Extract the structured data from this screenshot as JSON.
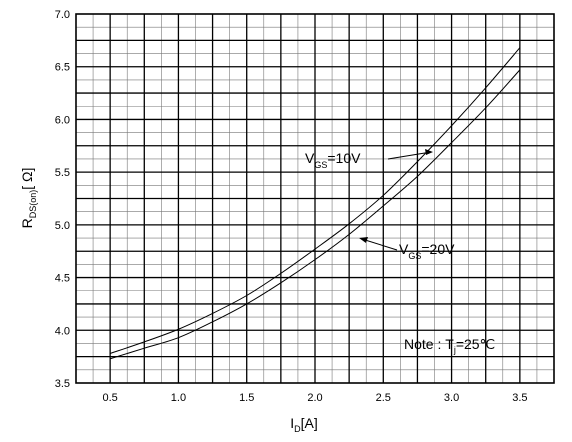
{
  "chart_data": {
    "type": "line",
    "xlabel": {
      "main": "I",
      "sub": "D",
      "unit": "[A]"
    },
    "ylabel": {
      "main": "R",
      "sub": "DS(on)",
      "unit": "[ Ω]"
    },
    "xlim": [
      0.25,
      3.75
    ],
    "ylim": [
      3.5,
      7.0
    ],
    "xticks": [
      "0.5",
      "1.0",
      "1.5",
      "2.0",
      "2.5",
      "3.0",
      "3.5"
    ],
    "yticks": [
      "3.5",
      "4.0",
      "4.5",
      "5.0",
      "5.5",
      "6.0",
      "6.5",
      "7.0"
    ],
    "grid": true,
    "series": [
      {
        "name": "VGS=10V",
        "label_main": "V",
        "label_sub": "GS",
        "label_val": "=10V",
        "x": [
          0.5,
          0.75,
          1.0,
          1.25,
          1.5,
          1.75,
          2.0,
          2.25,
          2.5,
          2.75,
          3.0,
          3.25,
          3.5
        ],
        "y": [
          3.78,
          3.89,
          4.01,
          4.16,
          4.33,
          4.54,
          4.77,
          5.01,
          5.28,
          5.6,
          5.94,
          6.3,
          6.68
        ]
      },
      {
        "name": "VGS=20V",
        "label_main": "V",
        "label_sub": "GS",
        "label_val": "=20V",
        "x": [
          0.5,
          0.75,
          1.0,
          1.25,
          1.5,
          1.75,
          2.0,
          2.25,
          2.5,
          2.75,
          3.0,
          3.25,
          3.5
        ],
        "y": [
          3.73,
          3.83,
          3.93,
          4.08,
          4.25,
          4.45,
          4.67,
          4.91,
          5.18,
          5.46,
          5.78,
          6.11,
          6.47
        ]
      }
    ],
    "note": {
      "prefix": "Note : ",
      "main": "T",
      "sub": "j",
      "value": "=25℃"
    }
  }
}
